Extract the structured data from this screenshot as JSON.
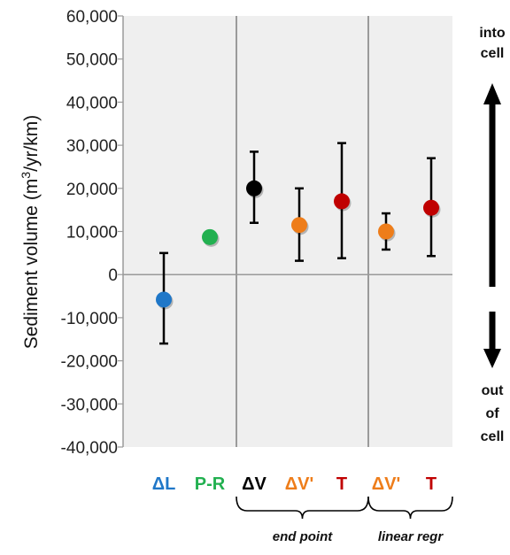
{
  "chart_data": {
    "type": "scatter",
    "ylabel_main": "Sediment volume (m",
    "ylabel_sup": "3",
    "ylabel_tail": "/yr/km)",
    "ylim": [
      -40000,
      60000
    ],
    "yticks": [
      60000,
      50000,
      40000,
      30000,
      20000,
      10000,
      0,
      -10000,
      -20000,
      -30000,
      -40000
    ],
    "ytick_labels": [
      "60,000",
      "50,000",
      "40,000",
      "30,000",
      "20,000",
      "10,000",
      "0",
      "-10,000",
      "-20,000",
      "-30,000",
      "-40,000"
    ],
    "grid": false,
    "points": [
      {
        "label": "ΔL",
        "value": -5800,
        "err_low": -16000,
        "err_high": 5000,
        "color": "#1f77c8"
      },
      {
        "label": "P-R",
        "value": 8700,
        "err_low": null,
        "err_high": null,
        "color": "#22b050"
      },
      {
        "label": "ΔV",
        "value": 20000,
        "err_low": 12000,
        "err_high": 28500,
        "color": "#000000"
      },
      {
        "label": "ΔV'",
        "value": 11500,
        "err_low": 3200,
        "err_high": 20000,
        "color": "#ee7d1a"
      },
      {
        "label": "T",
        "value": 17000,
        "err_low": 3800,
        "err_high": 30500,
        "color": "#c00000"
      },
      {
        "label": "ΔV'",
        "value": 10000,
        "err_low": 5800,
        "err_high": 14200,
        "color": "#ee7d1a"
      },
      {
        "label": "T",
        "value": 15500,
        "err_low": 4300,
        "err_high": 27000,
        "color": "#c00000"
      }
    ],
    "groups": [
      {
        "label": "end point",
        "from": 2,
        "to": 4
      },
      {
        "label": "linear regr",
        "from": 5,
        "to": 6
      }
    ],
    "direction_top": [
      "into",
      "cell"
    ],
    "direction_bottom": [
      "out",
      "of",
      "cell"
    ]
  },
  "colors": {
    "panel_bg": "#efefef",
    "divider": "#9a9a9a",
    "axis": "#9a9a9a"
  }
}
